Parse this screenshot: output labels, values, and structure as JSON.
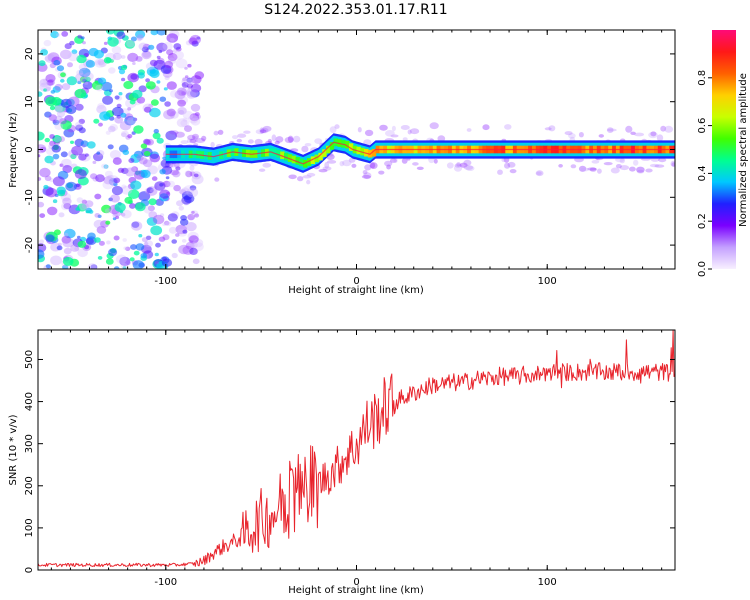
{
  "figure": {
    "title": "S124.2022.353.01.17.R11"
  },
  "chart_data": [
    {
      "id": "spectrogram",
      "type": "heatmap",
      "xlabel": "Height of straight line (km)",
      "ylabel": "Frequency (Hz)",
      "xlim": [
        -167,
        167
      ],
      "ylim": [
        -25,
        25
      ],
      "xticks": [
        -100,
        0,
        100
      ],
      "yticks": [
        -20,
        -10,
        0,
        10,
        20
      ],
      "grid": false,
      "colorbar": {
        "label": "Normalized spectral amplitude",
        "range": [
          0.0,
          1.0
        ],
        "ticks": [
          0.0,
          0.2,
          0.4,
          0.6,
          0.8
        ],
        "tick_labels": [
          "0.0",
          "0.2",
          "0.4",
          "0.6",
          "0.8"
        ],
        "colors": [
          "#f8f0ff",
          "#c4a0ff",
          "#7a00ff",
          "#2020ff",
          "#00c8ff",
          "#00ff90",
          "#40ff00",
          "#c8ff00",
          "#ffd000",
          "#ff6000",
          "#ff1818",
          "#ff0a78"
        ]
      },
      "noise_region_x": [
        -167,
        -90
      ],
      "line_onset_x": -100,
      "signal_path": [
        {
          "x": -100,
          "f": -1.0
        },
        {
          "x": -85,
          "f": -1.0
        },
        {
          "x": -75,
          "f": -1.5
        },
        {
          "x": -65,
          "f": -0.5
        },
        {
          "x": -55,
          "f": -1.0
        },
        {
          "x": -45,
          "f": -0.5
        },
        {
          "x": -38,
          "f": -1.5
        },
        {
          "x": -28,
          "f": -3.0
        },
        {
          "x": -20,
          "f": -1.5
        },
        {
          "x": -12,
          "f": 1.5
        },
        {
          "x": -6,
          "f": 1.0
        },
        {
          "x": -2,
          "f": 0.0
        },
        {
          "x": 7,
          "f": -1.0
        },
        {
          "x": 10,
          "f": 0.0
        },
        {
          "x": 40,
          "f": 0.0
        },
        {
          "x": 80,
          "f": 0.0
        },
        {
          "x": 120,
          "f": 0.0
        },
        {
          "x": 167,
          "f": 0.0
        }
      ],
      "signal_amplitude": [
        {
          "x": -100,
          "a": 0.3
        },
        {
          "x": -70,
          "a": 0.5
        },
        {
          "x": -40,
          "a": 0.55
        },
        {
          "x": -15,
          "a": 0.6
        },
        {
          "x": 10,
          "a": 0.8
        },
        {
          "x": 40,
          "a": 0.85
        },
        {
          "x": 80,
          "a": 0.95
        },
        {
          "x": 167,
          "a": 1.0
        }
      ]
    },
    {
      "id": "snr",
      "type": "line",
      "xlabel": "Height of straight line (km)",
      "ylabel": "SNR (10 * v/v)",
      "xlim": [
        -167,
        167
      ],
      "ylim": [
        0,
        570
      ],
      "xticks": [
        -100,
        0,
        100
      ],
      "yticks": [
        0,
        100,
        200,
        300,
        400,
        500
      ],
      "grid": false,
      "series": [
        {
          "color": "#e8242c",
          "x": [
            -167,
            -150,
            -130,
            -110,
            -95,
            -85,
            -80,
            -75,
            -70,
            -65,
            -60,
            -55,
            -50,
            -45,
            -40,
            -35,
            -30,
            -25,
            -20,
            -15,
            -10,
            -5,
            0,
            5,
            10,
            15,
            20,
            25,
            30,
            35,
            40,
            45,
            50,
            55,
            60,
            65,
            70,
            75,
            80,
            85,
            90,
            95,
            100,
            105,
            110,
            115,
            120,
            125,
            130,
            135,
            140,
            145,
            150,
            155,
            160,
            167
          ],
          "y": [
            12,
            12,
            12,
            12,
            12,
            15,
            22,
            40,
            55,
            65,
            80,
            100,
            120,
            130,
            150,
            170,
            185,
            195,
            205,
            225,
            245,
            275,
            295,
            340,
            360,
            385,
            400,
            410,
            420,
            430,
            440,
            440,
            445,
            445,
            450,
            455,
            455,
            460,
            460,
            460,
            465,
            465,
            470,
            470,
            470,
            470,
            470,
            470,
            470,
            470,
            470,
            470,
            470,
            470,
            470,
            470
          ]
        }
      ]
    }
  ]
}
